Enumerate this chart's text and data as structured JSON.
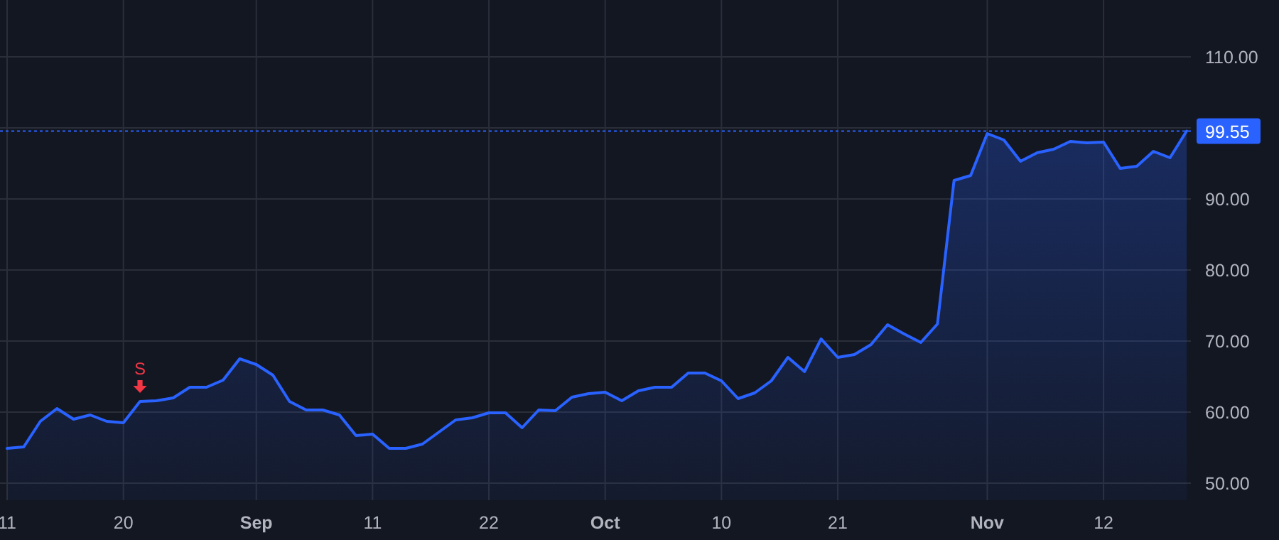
{
  "chart_data": {
    "type": "area",
    "categories": [
      "11",
      null,
      null,
      null,
      null,
      null,
      null,
      "20",
      null,
      null,
      null,
      null,
      null,
      null,
      null,
      "Sep",
      null,
      null,
      null,
      null,
      null,
      null,
      "11",
      null,
      null,
      null,
      null,
      null,
      null,
      "22",
      null,
      null,
      null,
      null,
      null,
      null,
      "Oct",
      null,
      null,
      null,
      null,
      null,
      null,
      "10",
      null,
      null,
      null,
      null,
      null,
      null,
      "21",
      null,
      null,
      null,
      null,
      null,
      null,
      null,
      null,
      "Nov",
      null,
      null,
      null,
      null,
      null,
      null,
      "12",
      null,
      null,
      null,
      null,
      null
    ],
    "series": [
      {
        "color": "#2962ff",
        "values": [
          54.9,
          55.1,
          58.7,
          60.5,
          59.0,
          59.6,
          58.7,
          58.5,
          61.5,
          61.6,
          62.0,
          63.5,
          63.5,
          64.5,
          67.5,
          66.7,
          65.2,
          61.5,
          60.3,
          60.3,
          59.6,
          56.7,
          56.9,
          54.9,
          54.9,
          55.5,
          57.2,
          58.9,
          59.2,
          59.9,
          59.9,
          57.8,
          60.3,
          60.2,
          62.1,
          62.6,
          62.8,
          61.6,
          63.0,
          63.5,
          63.5,
          65.5,
          65.5,
          64.4,
          61.9,
          62.7,
          64.4,
          67.7,
          65.7,
          70.3,
          67.7,
          68.1,
          69.5,
          72.3,
          71.0,
          69.8,
          72.4,
          92.6,
          93.3,
          99.2,
          98.3,
          95.3,
          96.5,
          97.0,
          98.1,
          97.9,
          98.0,
          94.3,
          94.6,
          96.7,
          95.8,
          99.55
        ]
      }
    ],
    "ylim": [
      47.6,
      118
    ],
    "yticks": [
      {
        "value": 50,
        "label": "50.00"
      },
      {
        "value": 60,
        "label": "60.00"
      },
      {
        "value": 70,
        "label": "70.00"
      },
      {
        "value": 80,
        "label": "80.00"
      },
      {
        "value": 90,
        "label": "90.00"
      },
      {
        "value": 100,
        "label": null
      },
      {
        "value": 110,
        "label": "110.00"
      }
    ],
    "grid": true,
    "ref_lines": [
      {
        "axis": "y",
        "value": 99.55,
        "label": "99.55",
        "color": "#2962ff",
        "line_style": "dotted"
      }
    ],
    "annotations": [
      {
        "text": "S",
        "y": 61.5
      }
    ]
  }
}
